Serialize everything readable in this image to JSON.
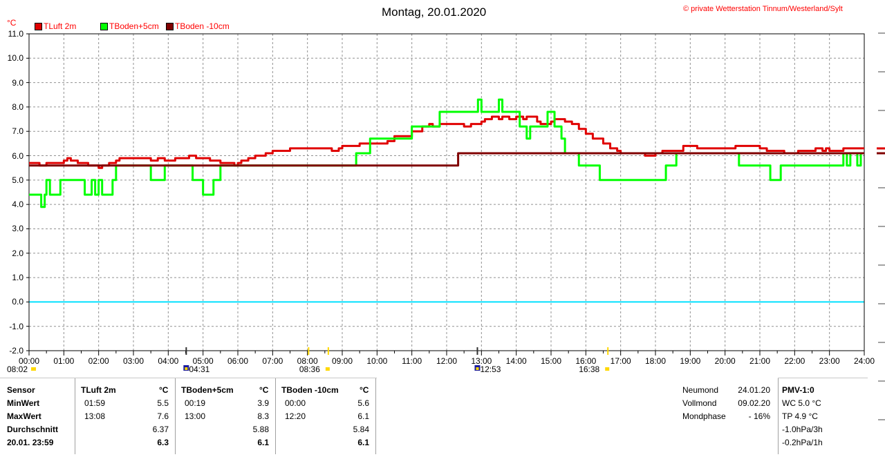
{
  "title": "Montag, 20.01.2020",
  "copyright": "© private Wetterstation Tinnum/Westerland/Sylt",
  "colors": {
    "tluft": "#e00000",
    "tboden5": "#00ff00",
    "tboden10": "#800000",
    "zero_line": "#00e0ff",
    "sun": "#ffd800",
    "moon": "#1a1aa0"
  },
  "chart_data": {
    "type": "line",
    "ylabel": "°C",
    "ylim": [
      -2.0,
      11.0
    ],
    "yticks": [
      "11.0",
      "10.0",
      "9.0",
      "8.0",
      "7.0",
      "6.0",
      "5.0",
      "4.0",
      "3.0",
      "2.0",
      "1.0",
      "0.0",
      "-1.0",
      "-2.0"
    ],
    "xlim": [
      0,
      24
    ],
    "xticks": [
      "00:00",
      "01:00",
      "02:00",
      "03:00",
      "04:00",
      "05:00",
      "06:00",
      "07:00",
      "08:00",
      "09:00",
      "10:00",
      "11:00",
      "12:00",
      "13:00",
      "14:00",
      "15:00",
      "16:00",
      "17:00",
      "18:00",
      "19:00",
      "20:00",
      "21:00",
      "22:00",
      "23:00",
      "24:00"
    ],
    "grid": true,
    "legend_position": "top-left",
    "series": [
      {
        "name": "TLuft 2m",
        "color": "#e00000",
        "x": [
          0.0,
          0.3,
          0.5,
          0.8,
          1.0,
          1.1,
          1.2,
          1.4,
          1.5,
          1.7,
          1.9,
          2.0,
          2.1,
          2.2,
          2.3,
          2.5,
          2.6,
          2.8,
          3.0,
          3.5,
          3.7,
          3.9,
          4.0,
          4.2,
          4.5,
          4.6,
          4.8,
          5.0,
          5.2,
          5.4,
          5.5,
          5.6,
          5.9,
          6.0,
          6.1,
          6.3,
          6.5,
          6.8,
          7.0,
          7.3,
          7.5,
          8.0,
          8.5,
          8.7,
          8.9,
          9.0,
          9.3,
          9.5,
          9.7,
          10.0,
          10.3,
          10.5,
          10.8,
          11.0,
          11.3,
          11.5,
          11.6,
          11.8,
          12.0,
          12.2,
          12.5,
          12.7,
          12.9,
          13.0,
          13.1,
          13.3,
          13.5,
          13.6,
          13.8,
          14.0,
          14.2,
          14.3,
          14.5,
          14.6,
          14.7,
          14.8,
          15.0,
          15.1,
          15.2,
          15.4,
          15.6,
          15.8,
          16.0,
          16.2,
          16.5,
          16.7,
          16.9,
          17.0,
          17.3,
          17.5,
          17.7,
          17.9,
          18.0,
          18.2,
          18.5,
          18.7,
          18.8,
          19.0,
          19.2,
          19.5,
          19.8,
          20.0,
          20.3,
          20.5,
          20.8,
          21.0,
          21.2,
          21.4,
          21.5,
          21.7,
          22.0,
          22.1,
          22.3,
          22.4,
          22.6,
          22.8,
          22.9,
          23.0,
          23.2,
          23.4,
          23.6,
          23.8,
          24.0
        ],
        "y": [
          5.7,
          5.6,
          5.7,
          5.7,
          5.8,
          5.9,
          5.8,
          5.7,
          5.7,
          5.6,
          5.6,
          5.5,
          5.6,
          5.6,
          5.7,
          5.8,
          5.9,
          5.9,
          5.9,
          5.8,
          5.9,
          5.8,
          5.8,
          5.9,
          5.9,
          6.0,
          5.9,
          5.9,
          5.8,
          5.8,
          5.7,
          5.7,
          5.6,
          5.7,
          5.8,
          5.9,
          6.0,
          6.1,
          6.2,
          6.2,
          6.3,
          6.3,
          6.3,
          6.2,
          6.3,
          6.4,
          6.4,
          6.5,
          6.5,
          6.5,
          6.6,
          6.8,
          6.8,
          7.0,
          7.2,
          7.3,
          7.2,
          7.3,
          7.3,
          7.3,
          7.2,
          7.3,
          7.3,
          7.4,
          7.5,
          7.6,
          7.5,
          7.6,
          7.5,
          7.6,
          7.5,
          7.6,
          7.6,
          7.4,
          7.3,
          7.3,
          7.4,
          7.5,
          7.5,
          7.4,
          7.3,
          7.1,
          6.9,
          6.7,
          6.5,
          6.3,
          6.2,
          6.1,
          6.1,
          6.1,
          6.0,
          6.0,
          6.1,
          6.2,
          6.2,
          6.2,
          6.4,
          6.4,
          6.3,
          6.3,
          6.3,
          6.3,
          6.4,
          6.4,
          6.4,
          6.3,
          6.2,
          6.2,
          6.2,
          6.1,
          6.1,
          6.2,
          6.2,
          6.2,
          6.3,
          6.2,
          6.3,
          6.2,
          6.2,
          6.3,
          6.3,
          6.3,
          6.3
        ]
      },
      {
        "name": "TBoden+5cm",
        "color": "#00ff00",
        "x": [
          0.0,
          0.3,
          0.35,
          0.45,
          0.5,
          0.6,
          0.9,
          1.5,
          1.6,
          1.8,
          1.9,
          2.0,
          2.1,
          2.4,
          2.5,
          3.2,
          3.5,
          3.8,
          3.9,
          4.3,
          4.5,
          4.6,
          4.7,
          4.8,
          4.9,
          5.0,
          5.3,
          5.5,
          5.6,
          5.7,
          6.0,
          6.4,
          6.5,
          7.0,
          8.0,
          9.0,
          9.4,
          9.5,
          9.7,
          9.8,
          10.0,
          10.4,
          10.7,
          11.0,
          11.5,
          11.8,
          11.9,
          12.0,
          12.2,
          12.5,
          12.9,
          13.0,
          13.1,
          13.2,
          13.5,
          13.6,
          13.8,
          14.0,
          14.1,
          14.3,
          14.4,
          14.7,
          14.8,
          14.9,
          15.0,
          15.1,
          15.3,
          15.4,
          15.5,
          15.8,
          15.9,
          16.0,
          16.3,
          16.4,
          16.5,
          16.6,
          17.0,
          17.5,
          17.8,
          18.0,
          18.3,
          18.4,
          18.6,
          18.7,
          19.0,
          20.0,
          20.4,
          20.5,
          20.6,
          21.0,
          21.3,
          21.4,
          21.6,
          21.8,
          22.0,
          22.5,
          23.0,
          23.3,
          23.4,
          23.5,
          23.6,
          23.8,
          23.9,
          24.0
        ],
        "y": [
          4.4,
          4.4,
          3.9,
          4.4,
          5.0,
          4.4,
          5.0,
          5.0,
          4.4,
          5.0,
          4.4,
          5.0,
          4.4,
          5.0,
          5.6,
          5.6,
          5.0,
          5.0,
          5.6,
          5.6,
          5.6,
          5.6,
          5.0,
          5.0,
          5.0,
          4.4,
          5.0,
          5.6,
          5.6,
          5.6,
          5.6,
          5.6,
          5.6,
          5.6,
          5.6,
          5.6,
          6.1,
          6.1,
          6.1,
          6.7,
          6.7,
          6.7,
          6.7,
          7.2,
          7.2,
          7.8,
          7.8,
          7.8,
          7.8,
          7.8,
          8.3,
          7.8,
          7.8,
          7.8,
          8.3,
          7.8,
          7.8,
          7.8,
          7.2,
          6.7,
          7.2,
          7.2,
          7.2,
          7.8,
          7.8,
          7.2,
          6.7,
          6.1,
          6.1,
          5.6,
          5.6,
          5.6,
          5.6,
          5.0,
          5.0,
          5.0,
          5.0,
          5.0,
          5.0,
          5.0,
          5.6,
          5.6,
          6.1,
          6.1,
          6.1,
          6.1,
          5.6,
          5.6,
          5.6,
          5.6,
          5.0,
          5.0,
          5.6,
          5.6,
          5.6,
          5.6,
          5.6,
          5.6,
          6.1,
          5.6,
          6.1,
          5.6,
          6.1,
          6.1
        ]
      },
      {
        "name": "TBoden -10cm",
        "color": "#800000",
        "x": [
          0.0,
          12.33,
          12.33,
          24.0
        ],
        "y": [
          5.6,
          5.6,
          6.1,
          6.1
        ]
      }
    ]
  },
  "sun_moon_markers": [
    {
      "time": "08:02",
      "type": "sunrise"
    },
    {
      "time": "04:31",
      "type": "moonrise"
    },
    {
      "time": "08:36",
      "type": "sunrise"
    },
    {
      "time": "12:53",
      "type": "moonset"
    },
    {
      "time": "16:38",
      "type": "sunset"
    }
  ],
  "stats": {
    "headers": {
      "sensor": "Sensor",
      "tluft": "TLuft 2m",
      "tb5": "TBoden+5cm",
      "tb10": "TBoden -10cm",
      "unit": "°C"
    },
    "rows": [
      {
        "label": "MinWert",
        "tluft_time": "01:59",
        "tluft_val": "5.5",
        "tb5_time": "00:19",
        "tb5_val": "3.9",
        "tb10_time": "00:00",
        "tb10_val": "5.6"
      },
      {
        "label": "MaxWert",
        "tluft_time": "13:08",
        "tluft_val": "7.6",
        "tb5_time": "13:00",
        "tb5_val": "8.3",
        "tb10_time": "12:20",
        "tb10_val": "6.1"
      },
      {
        "label": "Durchschnitt",
        "tluft_time": "",
        "tluft_val": "6.37",
        "tb5_time": "",
        "tb5_val": "5.88",
        "tb10_time": "",
        "tb10_val": "5.84"
      },
      {
        "label": "20.01. 23:59",
        "tluft_time": "",
        "tluft_val": "6.3",
        "tb5_time": "",
        "tb5_val": "6.1",
        "tb10_time": "",
        "tb10_val": "6.1"
      }
    ]
  },
  "moon": [
    {
      "label": "Neumond",
      "value": "24.01.20"
    },
    {
      "label": "Vollmond",
      "value": "09.02.20"
    },
    {
      "label": "Mondphase",
      "value": "- 16%"
    }
  ],
  "pmv": {
    "title": "PMV-1:0",
    "lines": [
      "WC 5.0 °C",
      "TP 4.9 °C",
      "-1.0hPa/3h",
      "-0.2hPa/1h"
    ]
  }
}
